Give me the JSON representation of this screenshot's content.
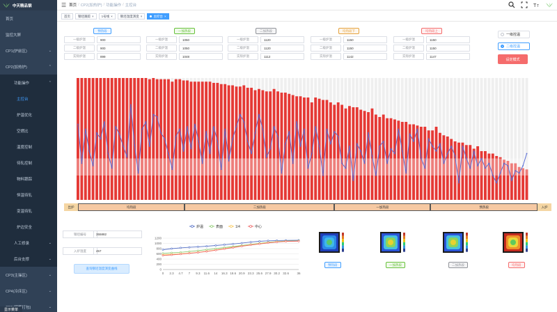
{
  "app": {
    "logo_text": "中天精品钢"
  },
  "sidebar": {
    "items": [
      {
        "label": "首页",
        "chevron": ""
      },
      {
        "label": "监控大屏",
        "chevron": ""
      },
      {
        "label": "CP1(炉前区)",
        "chevron": "⌄"
      },
      {
        "label": "CP2(加热炉)",
        "chevron": "⌃"
      }
    ],
    "group": {
      "label": "功能操作",
      "chevron": "⌃"
    },
    "subitems": [
      {
        "label": "主控台",
        "active": true
      },
      {
        "label": "炉温优化"
      },
      {
        "label": "空燃比"
      },
      {
        "label": "温度控制"
      },
      {
        "label": "待轧控制"
      },
      {
        "label": "物料跟踪"
      },
      {
        "label": "恒温待轧"
      },
      {
        "label": "变温待轧"
      },
      {
        "label": "炉边安全"
      }
    ],
    "tail": [
      {
        "label": "人工修录",
        "chevron": "⌄"
      },
      {
        "label": "后台支撑",
        "chevron": "⌄"
      },
      {
        "label": "CP3(主操区)",
        "chevron": "⌄"
      },
      {
        "label": "CP4(冷床区)",
        "chevron": "⌄"
      },
      {
        "label": "CP5(精整打包)",
        "chevron": "⌄"
      }
    ],
    "bottom_tag": "显示菜单"
  },
  "header": {
    "breadcrumbs": [
      "首页",
      "CP2(加热炉)",
      "功能操作",
      "主控台"
    ]
  },
  "tags": [
    {
      "label": "首页",
      "closable": false,
      "active": false
    },
    {
      "label": "钢坯跟踪",
      "closable": true,
      "active": false
    },
    {
      "label": "1号线",
      "closable": true,
      "active": false
    },
    {
      "label": "钢坯温度演变",
      "closable": true,
      "active": false
    },
    {
      "label": "主控台",
      "closable": true,
      "active": true
    }
  ],
  "furnace": [
    {
      "name": "预热段",
      "color": "#409eff",
      "bg": "#ecf5ff",
      "rows": [
        [
          "一级炉温",
          "900"
        ],
        [
          "二级炉温",
          "900"
        ],
        [
          "实际炉温",
          "899"
        ]
      ]
    },
    {
      "name": "一加热段",
      "color": "#67c23a",
      "bg": "#f0f9eb",
      "rows": [
        [
          "一级炉温",
          "1050"
        ],
        [
          "二级炉温",
          "1050"
        ],
        [
          "实际炉温",
          "1048"
        ]
      ]
    },
    {
      "name": "二加热段",
      "color": "#909399",
      "bg": "#f4f4f5",
      "rows": [
        [
          "一级炉温",
          "1120"
        ],
        [
          "二级炉温",
          "1120"
        ],
        [
          "实际炉温",
          "1112"
        ]
      ]
    },
    {
      "name": "均热段下",
      "color": "#e6a23c",
      "bg": "#fdf6ec",
      "rows": [
        [
          "一级炉温",
          "1150"
        ],
        [
          "二级炉温",
          "1150"
        ],
        [
          "实际炉温",
          "1142"
        ]
      ]
    },
    {
      "name": "均热段上",
      "color": "#f56c6c",
      "bg": "#fef0f0",
      "rows": [
        [
          "一级炉温",
          "1150"
        ],
        [
          "二级炉温",
          "1150"
        ],
        [
          "实际炉温",
          "1147"
        ]
      ]
    }
  ],
  "control_mode": {
    "options": [
      "一级控温",
      "二级控温"
    ],
    "selected": "二级控温",
    "set_button": "设定模式"
  },
  "chart_data": [
    {
      "type": "bar",
      "series": [
        {
          "color": "#e53935",
          "values": [
            100,
            100,
            100,
            100,
            100,
            100,
            100,
            100,
            100,
            100,
            100,
            100,
            100,
            100,
            100,
            100,
            100,
            100,
            100,
            99,
            100,
            99,
            99,
            99,
            99,
            97,
            99,
            99,
            98,
            98,
            97,
            97,
            97,
            97,
            97,
            97,
            96,
            96,
            95,
            95,
            94,
            94,
            93,
            93,
            94,
            92,
            92,
            90,
            91,
            90,
            89,
            89,
            91,
            89,
            88,
            88,
            87,
            86,
            85,
            85,
            84,
            84,
            80,
            84,
            83,
            82,
            82,
            80,
            78,
            80,
            78,
            75,
            77,
            76,
            76,
            74,
            73,
            72,
            75,
            70,
            68,
            70,
            67,
            67,
            66,
            65,
            64,
            64,
            62,
            62,
            61,
            60,
            60,
            57,
            57,
            60,
            55,
            53,
            52,
            50,
            48,
            47,
            47,
            45,
            45,
            42,
            44,
            40,
            40,
            38,
            38,
            36,
            35,
            33,
            32,
            30,
            30,
            27,
            26,
            25
          ]
        },
        {
          "color": "#5b6fd6",
          "values": [
            62,
            30,
            58,
            40,
            28,
            55,
            50,
            64,
            38,
            26,
            60,
            54,
            44,
            35,
            78,
            45,
            22,
            58,
            64,
            44,
            70,
            68,
            55,
            50,
            38,
            25,
            52,
            58,
            40,
            60,
            42,
            62,
            48,
            30,
            56,
            38,
            60,
            48,
            25,
            58,
            32,
            50,
            60,
            70,
            64,
            48,
            38,
            55,
            70,
            58,
            35,
            42,
            60,
            52,
            22,
            46,
            56,
            30,
            64,
            44,
            58,
            26,
            38,
            60,
            44,
            20,
            58,
            46,
            56,
            52,
            30,
            26,
            44,
            16,
            46,
            40,
            30,
            55,
            36,
            20,
            44,
            48,
            30,
            42,
            38,
            58,
            40,
            22,
            54,
            48,
            58,
            34,
            26,
            50,
            44,
            40,
            46,
            30,
            38,
            44,
            36,
            14,
            44,
            34,
            26,
            40,
            28,
            34,
            26,
            30,
            20,
            14,
            22,
            30,
            28,
            16,
            24,
            22,
            28,
            38
          ]
        }
      ]
    },
    {
      "type": "line",
      "x": [
        0.0,
        2.3,
        4.7,
        7.0,
        9.3,
        11.6,
        14.0,
        16.3,
        18.6,
        20.9,
        23.3,
        25.6,
        27.9,
        30.2,
        32.6,
        36.0
      ],
      "ylim": [
        0,
        1200
      ],
      "yticks": [
        0,
        200,
        400,
        600,
        800,
        1000,
        1200
      ],
      "series": [
        {
          "name": "炉温",
          "color": "#5470c6",
          "values": [
            760,
            800,
            830,
            850,
            870,
            890,
            920,
            950,
            980,
            1010,
            1050,
            1080,
            1100,
            1110,
            1115,
            1120
          ]
        },
        {
          "name": "表面",
          "color": "#91cc75",
          "values": [
            620,
            640,
            660,
            690,
            720,
            760,
            800,
            840,
            880,
            920,
            960,
            1000,
            1040,
            1070,
            1090,
            1100
          ]
        },
        {
          "name": "1/4",
          "color": "#fac858",
          "values": [
            560,
            580,
            600,
            630,
            660,
            700,
            750,
            800,
            850,
            900,
            950,
            990,
            1030,
            1060,
            1080,
            1090
          ]
        },
        {
          "name": "中心",
          "color": "#ee6666",
          "values": [
            540,
            560,
            590,
            620,
            650,
            690,
            740,
            790,
            840,
            890,
            940,
            980,
            1020,
            1050,
            1075,
            1085
          ]
        }
      ]
    }
  ],
  "zones": {
    "start_label": "出炉",
    "end_label": "入炉",
    "segments": [
      {
        "label": "均热段",
        "weight": 1.0
      },
      {
        "label": "二加热段",
        "weight": 1.4
      },
      {
        "label": "一加热段",
        "weight": 0.9
      },
      {
        "label": "预热段",
        "weight": 1.0
      }
    ]
  },
  "billet": {
    "id_label": "钢坯编号",
    "id_value": "355882",
    "temp_label": "入炉温度",
    "temp_value": "457",
    "query_button": "查询钢坯温度演变曲线"
  },
  "heatmaps": [
    {
      "label": "预热段",
      "color": "#409eff",
      "bg": "#ecf5ff"
    },
    {
      "label": "一加热段",
      "color": "#67c23a",
      "bg": "#f0f9eb"
    },
    {
      "label": "二加热段",
      "color": "#909399",
      "bg": "#f4f4f5"
    },
    {
      "label": "均热段",
      "color": "#f56c6c",
      "bg": "#fef0f0"
    }
  ]
}
